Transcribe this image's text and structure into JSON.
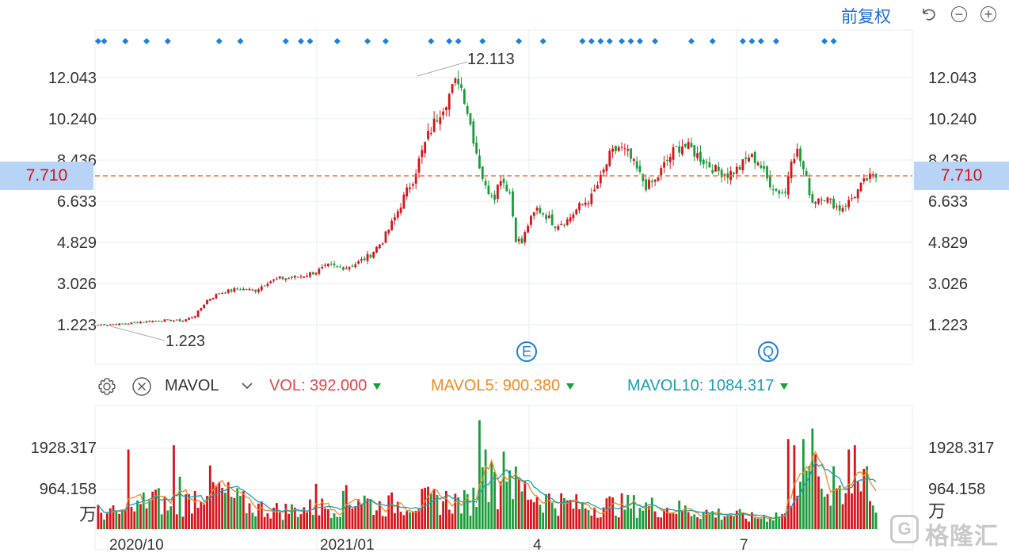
{
  "toolbar": {
    "adjust_label": "前复权",
    "undo_icon": "undo-icon",
    "zoom_out_icon": "zoom-out-icon",
    "zoom_in_icon": "zoom-in-icon"
  },
  "colors": {
    "up": "#d7141a",
    "down": "#1a9c3a",
    "grid": "#e6edf5",
    "dashed_price": "#e8743b",
    "marker": "#1e7fd8",
    "mavol5": "#f08a24",
    "mavol10": "#1a9fb5",
    "price_tag_bg": "#b7d3f5"
  },
  "indicator": {
    "settings_icon": "gear-icon",
    "close_icon": "close-icon",
    "name": "MAVOL",
    "dropdown_icon": "chevron-down-icon",
    "vol": "VOL: 392.000",
    "mavol5": "MAVOL5: 900.380",
    "mavol10": "MAVOL10: 1084.317"
  },
  "events": [
    {
      "label": "E"
    },
    {
      "label": "Q"
    }
  ],
  "watermark": {
    "logo": "G",
    "text": "格隆汇"
  },
  "chart_data": [
    {
      "type": "candlestick",
      "title": "",
      "current_price": "7.710",
      "high_label": "12.113",
      "low_label": "1.223",
      "y_ticks": [
        "12.043",
        "10.240",
        "8.436",
        "6.633",
        "4.829",
        "3.026",
        "1.223"
      ],
      "y_tick_values": [
        12.043,
        10.24,
        8.436,
        6.633,
        4.829,
        3.026,
        1.223
      ],
      "ylim": [
        0.1,
        13.2
      ],
      "x_labels": [
        "2020/10",
        "2021/01",
        "4",
        "7"
      ],
      "marker_row": "blue diamonds above price panel",
      "close_path": [
        [
          0,
          1.22
        ],
        [
          8,
          1.25
        ],
        [
          14,
          1.35
        ],
        [
          22,
          1.42
        ],
        [
          28,
          1.4
        ],
        [
          32,
          1.62
        ],
        [
          36,
          2.3
        ],
        [
          40,
          2.6
        ],
        [
          46,
          2.8
        ],
        [
          52,
          2.72
        ],
        [
          56,
          3.1
        ],
        [
          60,
          3.25
        ],
        [
          66,
          3.3
        ],
        [
          72,
          3.55
        ],
        [
          76,
          3.8
        ],
        [
          82,
          3.72
        ],
        [
          86,
          3.95
        ],
        [
          90,
          4.3
        ],
        [
          94,
          4.9
        ],
        [
          98,
          5.9
        ],
        [
          101,
          6.8
        ],
        [
          104,
          7.6
        ],
        [
          106,
          8.4
        ],
        [
          109,
          9.5
        ],
        [
          113,
          10.6
        ],
        [
          116,
          11.3
        ],
        [
          119,
          12.0
        ],
        [
          121,
          11.2
        ],
        [
          124,
          9.4
        ],
        [
          126,
          8.2
        ],
        [
          128,
          7.2
        ],
        [
          131,
          6.9
        ],
        [
          133,
          7.7
        ],
        [
          136,
          7.0
        ],
        [
          138,
          5.0
        ],
        [
          140,
          4.8
        ],
        [
          142,
          5.6
        ],
        [
          145,
          6.3
        ],
        [
          148,
          6.0
        ],
        [
          151,
          5.6
        ],
        [
          155,
          5.8
        ],
        [
          159,
          6.4
        ],
        [
          163,
          6.8
        ],
        [
          166,
          7.6
        ],
        [
          169,
          8.6
        ],
        [
          172,
          9.0
        ],
        [
          175,
          8.7
        ],
        [
          178,
          8.0
        ],
        [
          181,
          7.3
        ],
        [
          184,
          7.5
        ],
        [
          187,
          8.2
        ],
        [
          190,
          8.8
        ],
        [
          193,
          9.1
        ],
        [
          196,
          8.9
        ],
        [
          200,
          8.4
        ],
        [
          204,
          8.0
        ],
        [
          208,
          7.8
        ],
        [
          212,
          8.1
        ],
        [
          215,
          8.6
        ],
        [
          218,
          8.4
        ],
        [
          221,
          7.6
        ],
        [
          224,
          7.1
        ],
        [
          227,
          7.0
        ],
        [
          229,
          8.6
        ],
        [
          231,
          8.8
        ],
        [
          233,
          8.0
        ],
        [
          236,
          6.6
        ],
        [
          239,
          6.9
        ],
        [
          242,
          6.6
        ],
        [
          245,
          6.3
        ],
        [
          248,
          6.6
        ],
        [
          251,
          7.1
        ],
        [
          254,
          7.6
        ],
        [
          257,
          7.7
        ]
      ]
    },
    {
      "type": "bar",
      "title": "",
      "series_label_unit": "万",
      "y_ticks": [
        "1928.317",
        "964.158"
      ],
      "y_tick_values": [
        1928.317,
        964.158
      ],
      "ylim": [
        0,
        2700
      ],
      "profile_points": [
        [
          0,
          420
        ],
        [
          10,
          380
        ],
        [
          18,
          820
        ],
        [
          24,
          500
        ],
        [
          30,
          700
        ],
        [
          36,
          1100
        ],
        [
          42,
          850
        ],
        [
          50,
          560
        ],
        [
          60,
          460
        ],
        [
          70,
          520
        ],
        [
          80,
          600
        ],
        [
          86,
          820
        ],
        [
          92,
          560
        ],
        [
          100,
          650
        ],
        [
          108,
          700
        ],
        [
          116,
          720
        ],
        [
          122,
          640
        ],
        [
          126,
          900
        ],
        [
          128,
          1500
        ],
        [
          131,
          1000
        ],
        [
          135,
          1200
        ],
        [
          140,
          1000
        ],
        [
          146,
          780
        ],
        [
          152,
          680
        ],
        [
          160,
          560
        ],
        [
          170,
          600
        ],
        [
          180,
          580
        ],
        [
          190,
          520
        ],
        [
          200,
          420
        ],
        [
          210,
          360
        ],
        [
          216,
          280
        ],
        [
          222,
          340
        ],
        [
          228,
          380
        ],
        [
          230,
          1500
        ],
        [
          233,
          1200
        ],
        [
          237,
          1250
        ],
        [
          240,
          950
        ],
        [
          244,
          1000
        ],
        [
          248,
          1050
        ],
        [
          252,
          1150
        ],
        [
          257,
          392
        ]
      ],
      "spikes": [
        [
          10,
          1900
        ],
        [
          25,
          2000
        ],
        [
          27,
          1250
        ],
        [
          72,
          1080
        ],
        [
          82,
          1050
        ],
        [
          126,
          2600
        ],
        [
          128,
          1900
        ],
        [
          130,
          1600
        ],
        [
          134,
          1850
        ],
        [
          136,
          1400
        ],
        [
          228,
          2150
        ],
        [
          230,
          2000
        ],
        [
          233,
          2150
        ],
        [
          236,
          2400
        ],
        [
          243,
          1500
        ],
        [
          248,
          1900
        ],
        [
          250,
          2000
        ],
        [
          254,
          1500
        ]
      ],
      "series": [
        {
          "name": "MAVOL5"
        },
        {
          "name": "MAVOL10"
        }
      ]
    }
  ]
}
